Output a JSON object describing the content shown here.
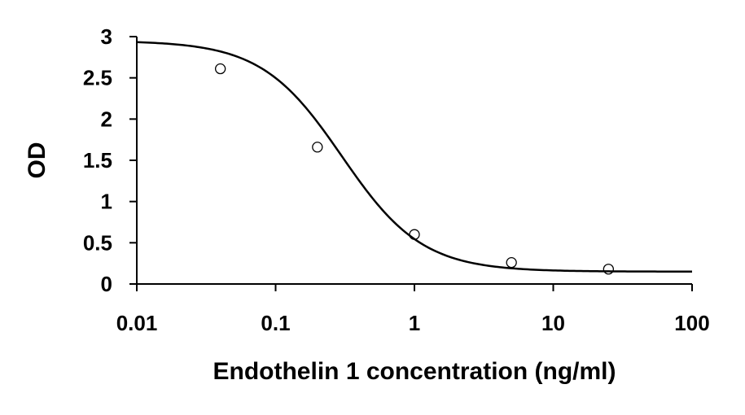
{
  "chart_data": {
    "type": "scatter",
    "title": "",
    "xlabel": "Endothelin 1 concentration (ng/ml)",
    "ylabel": "OD",
    "xscale": "log",
    "xlim": [
      0.01,
      100
    ],
    "ylim": [
      0,
      3
    ],
    "xticks": [
      0.01,
      0.1,
      1,
      10,
      100
    ],
    "xtick_labels": [
      "0.01",
      "0.1",
      "1",
      "10",
      "100"
    ],
    "yticks": [
      0,
      0.5,
      1,
      1.5,
      2,
      2.5,
      3
    ],
    "ytick_labels": [
      "0",
      "0.5",
      "1",
      "1.5",
      "2",
      "2.5",
      "3"
    ],
    "grid": false,
    "legend": "none",
    "points": {
      "x": [
        0.04,
        0.2,
        1,
        5,
        25
      ],
      "y": [
        2.61,
        1.66,
        0.6,
        0.26,
        0.18
      ]
    },
    "fit_curve": {
      "model": "4PL",
      "top": 2.95,
      "bottom": 0.15,
      "ec50": 0.3,
      "hill": 1.5,
      "x_range": [
        0.01,
        100
      ]
    },
    "colors": {
      "axis": "#000000",
      "curve": "#000000",
      "marker_stroke": "#000000"
    }
  }
}
